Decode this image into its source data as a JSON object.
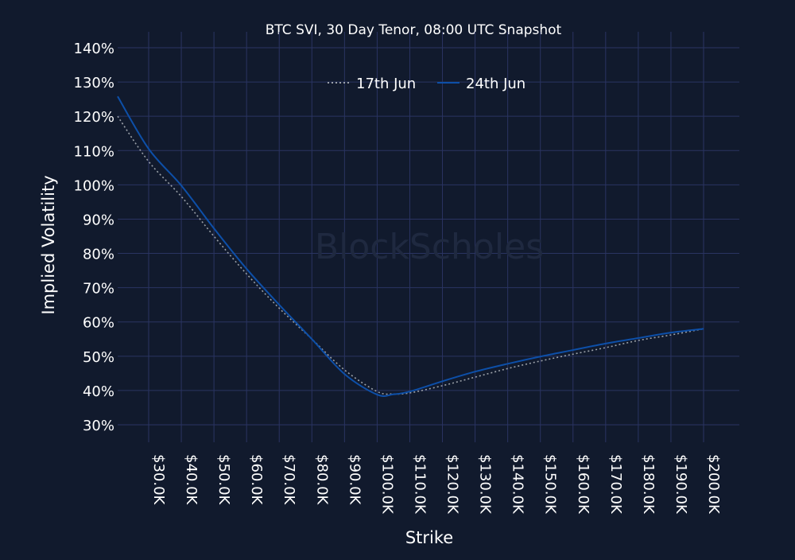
{
  "chart_data": {
    "type": "line",
    "title": "BTC SVI, 30 Day Tenor, 08:00 UTC Snapshot",
    "xlabel": "Strike",
    "ylabel": "Implied Volatility",
    "watermark": "BlockScholes",
    "ylim": [
      25,
      140
    ],
    "xlim": [
      20.5,
      200
    ],
    "grid": true,
    "legend_placement": "top-center",
    "y_ticks": [
      30,
      40,
      50,
      60,
      70,
      80,
      90,
      100,
      110,
      120,
      130,
      140
    ],
    "y_tick_labels": [
      "30%",
      "40%",
      "50%",
      "60%",
      "70%",
      "80%",
      "90%",
      "100%",
      "110%",
      "120%",
      "130%",
      "140%"
    ],
    "x_ticks": [
      30,
      40,
      50,
      60,
      70,
      80,
      90,
      100,
      110,
      120,
      130,
      140,
      150,
      160,
      170,
      180,
      190,
      200
    ],
    "x_tick_labels": [
      "$30.0K",
      "$40.0K",
      "$50.0K",
      "$60.0K",
      "$70.0K",
      "$80.0K",
      "$90.0K",
      "$100.0K",
      "$110.0K",
      "$120.0K",
      "$130.0K",
      "$140.0K",
      "$150.0K",
      "$160.0K",
      "$170.0K",
      "$180.0K",
      "$190.0K",
      "$200.0K"
    ],
    "x_unit": "Strike ($K)",
    "series": [
      {
        "name": "17th Jun",
        "color": "#9aa0a8",
        "style": "dotted",
        "x": [
          20.5,
          30,
          40,
          50,
          60,
          70,
          80,
          90,
          100,
          105,
          110,
          120,
          130,
          140,
          150,
          160,
          170,
          180,
          190,
          200
        ],
        "y": [
          120,
          106.8,
          96.6,
          85,
          74,
          64,
          55,
          46,
          39.7,
          39.0,
          39.3,
          41.4,
          43.9,
          46.4,
          48.6,
          50.6,
          52.5,
          54.6,
          56.2,
          58
        ]
      },
      {
        "name": "24th Jun",
        "color": "#0d4fa8",
        "style": "solid",
        "x": [
          20.5,
          30,
          40,
          50,
          60,
          70,
          80,
          90,
          100,
          105,
          110,
          120,
          130,
          140,
          150,
          160,
          170,
          180,
          190,
          200
        ],
        "y": [
          125.8,
          110.5,
          99.8,
          87.3,
          75.5,
          65,
          55,
          44.8,
          38.8,
          38.9,
          39.7,
          42.7,
          45.5,
          47.8,
          49.9,
          51.8,
          53.7,
          55.3,
          56.9,
          58
        ]
      }
    ]
  }
}
